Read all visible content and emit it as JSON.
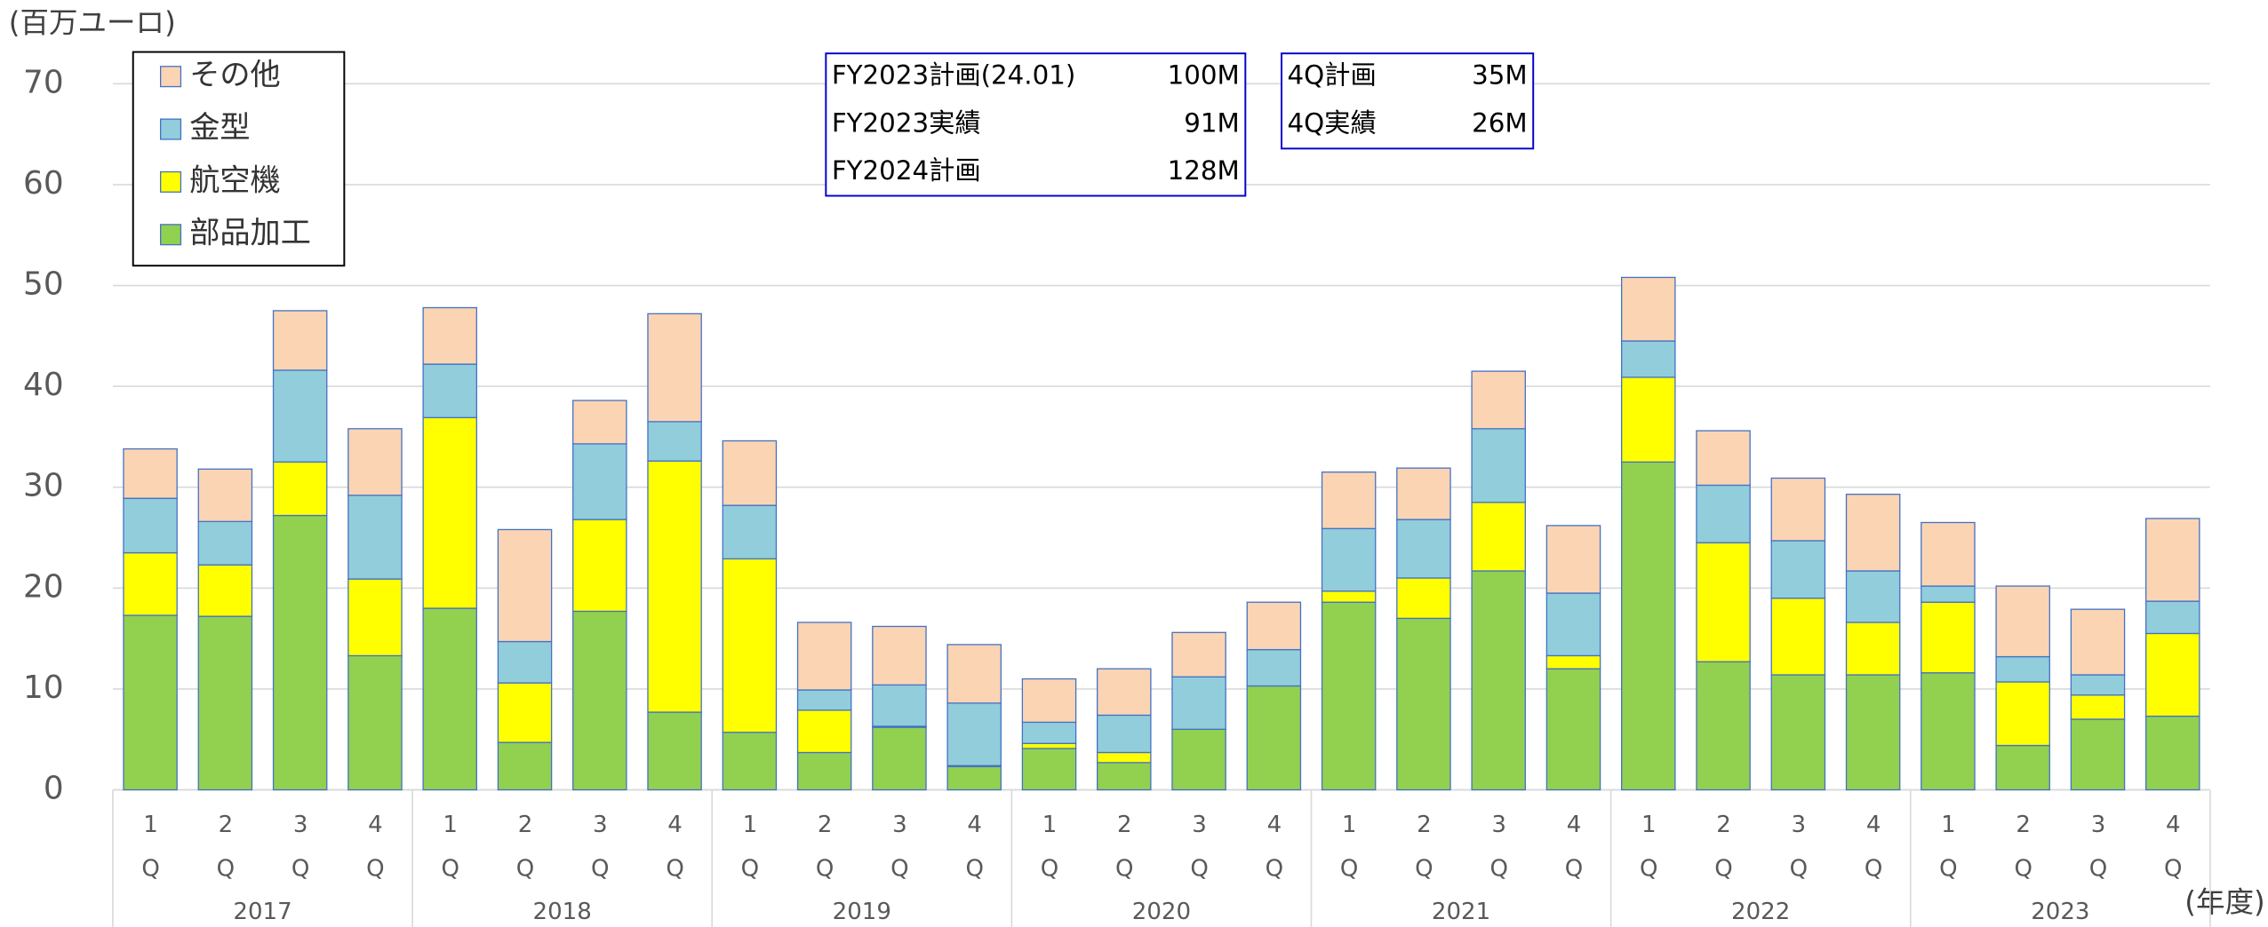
{
  "chart_data": {
    "type": "stacked_bar",
    "y_label": "(百万ユーロ)",
    "x_label": "(年度)",
    "categories": [
      "1Q",
      "2Q",
      "3Q",
      "4Q",
      "1Q",
      "2Q",
      "3Q",
      "4Q",
      "1Q",
      "2Q",
      "3Q",
      "4Q",
      "1Q",
      "2Q",
      "3Q",
      "4Q",
      "1Q",
      "2Q",
      "3Q",
      "4Q",
      "1Q",
      "2Q",
      "3Q",
      "4Q",
      "1Q",
      "2Q",
      "3Q",
      "4Q"
    ],
    "years": [
      "2017",
      "2018",
      "2019",
      "2020",
      "2021",
      "2022",
      "2023"
    ],
    "ylim": [
      0,
      70
    ],
    "yticks": [
      0,
      10,
      20,
      30,
      40,
      50,
      60,
      70
    ],
    "grid": true,
    "legend": "upper left",
    "series": [
      {
        "name": "部品加工",
        "color": "#92d050",
        "values": [
          17.3,
          17.2,
          27.2,
          13.3,
          18.0,
          4.7,
          17.7,
          7.7,
          5.7,
          3.7,
          6.2,
          2.3,
          4.1,
          2.7,
          6.0,
          10.3,
          18.6,
          17.0,
          21.7,
          12.0,
          32.5,
          12.7,
          11.4,
          11.4,
          11.6,
          4.4,
          7.0,
          7.3
        ]
      },
      {
        "name": "航空機",
        "color": "#ffff00",
        "values": [
          6.2,
          5.1,
          5.3,
          7.6,
          18.9,
          5.9,
          9.1,
          24.9,
          17.2,
          4.2,
          0.1,
          0.1,
          0.5,
          1.0,
          0,
          0,
          1.1,
          4.0,
          6.8,
          1.3,
          8.4,
          11.8,
          7.6,
          5.2,
          7.0,
          6.3,
          2.4,
          8.2
        ]
      },
      {
        "name": "金型",
        "color": "#92cddc",
        "values": [
          5.4,
          4.3,
          9.1,
          8.3,
          5.3,
          4.1,
          7.5,
          3.9,
          5.3,
          2.0,
          4.1,
          6.2,
          2.1,
          3.7,
          5.2,
          3.6,
          6.2,
          5.8,
          7.3,
          6.2,
          3.6,
          5.7,
          5.7,
          5.1,
          1.6,
          2.5,
          2.0,
          3.2
        ]
      },
      {
        "name": "その他",
        "color": "#fbd4b4",
        "values": [
          4.9,
          5.2,
          5.9,
          6.6,
          5.6,
          11.1,
          4.3,
          10.7,
          6.4,
          6.7,
          5.8,
          5.8,
          4.3,
          4.6,
          4.4,
          4.7,
          5.6,
          5.1,
          5.7,
          6.7,
          6.3,
          5.4,
          6.2,
          7.6,
          6.3,
          7.0,
          6.5,
          8.2
        ]
      }
    ],
    "notes": [
      [
        {
          "label": "FY2023計画(24.01)",
          "value": "100M"
        },
        {
          "label": "FY2023実績",
          "value": "91M"
        },
        {
          "label": "FY2024計画",
          "value": "128M"
        }
      ],
      [
        {
          "label": "4Q計画",
          "value": "35M"
        },
        {
          "label": "4Q実績",
          "value": "26M"
        }
      ]
    ]
  }
}
